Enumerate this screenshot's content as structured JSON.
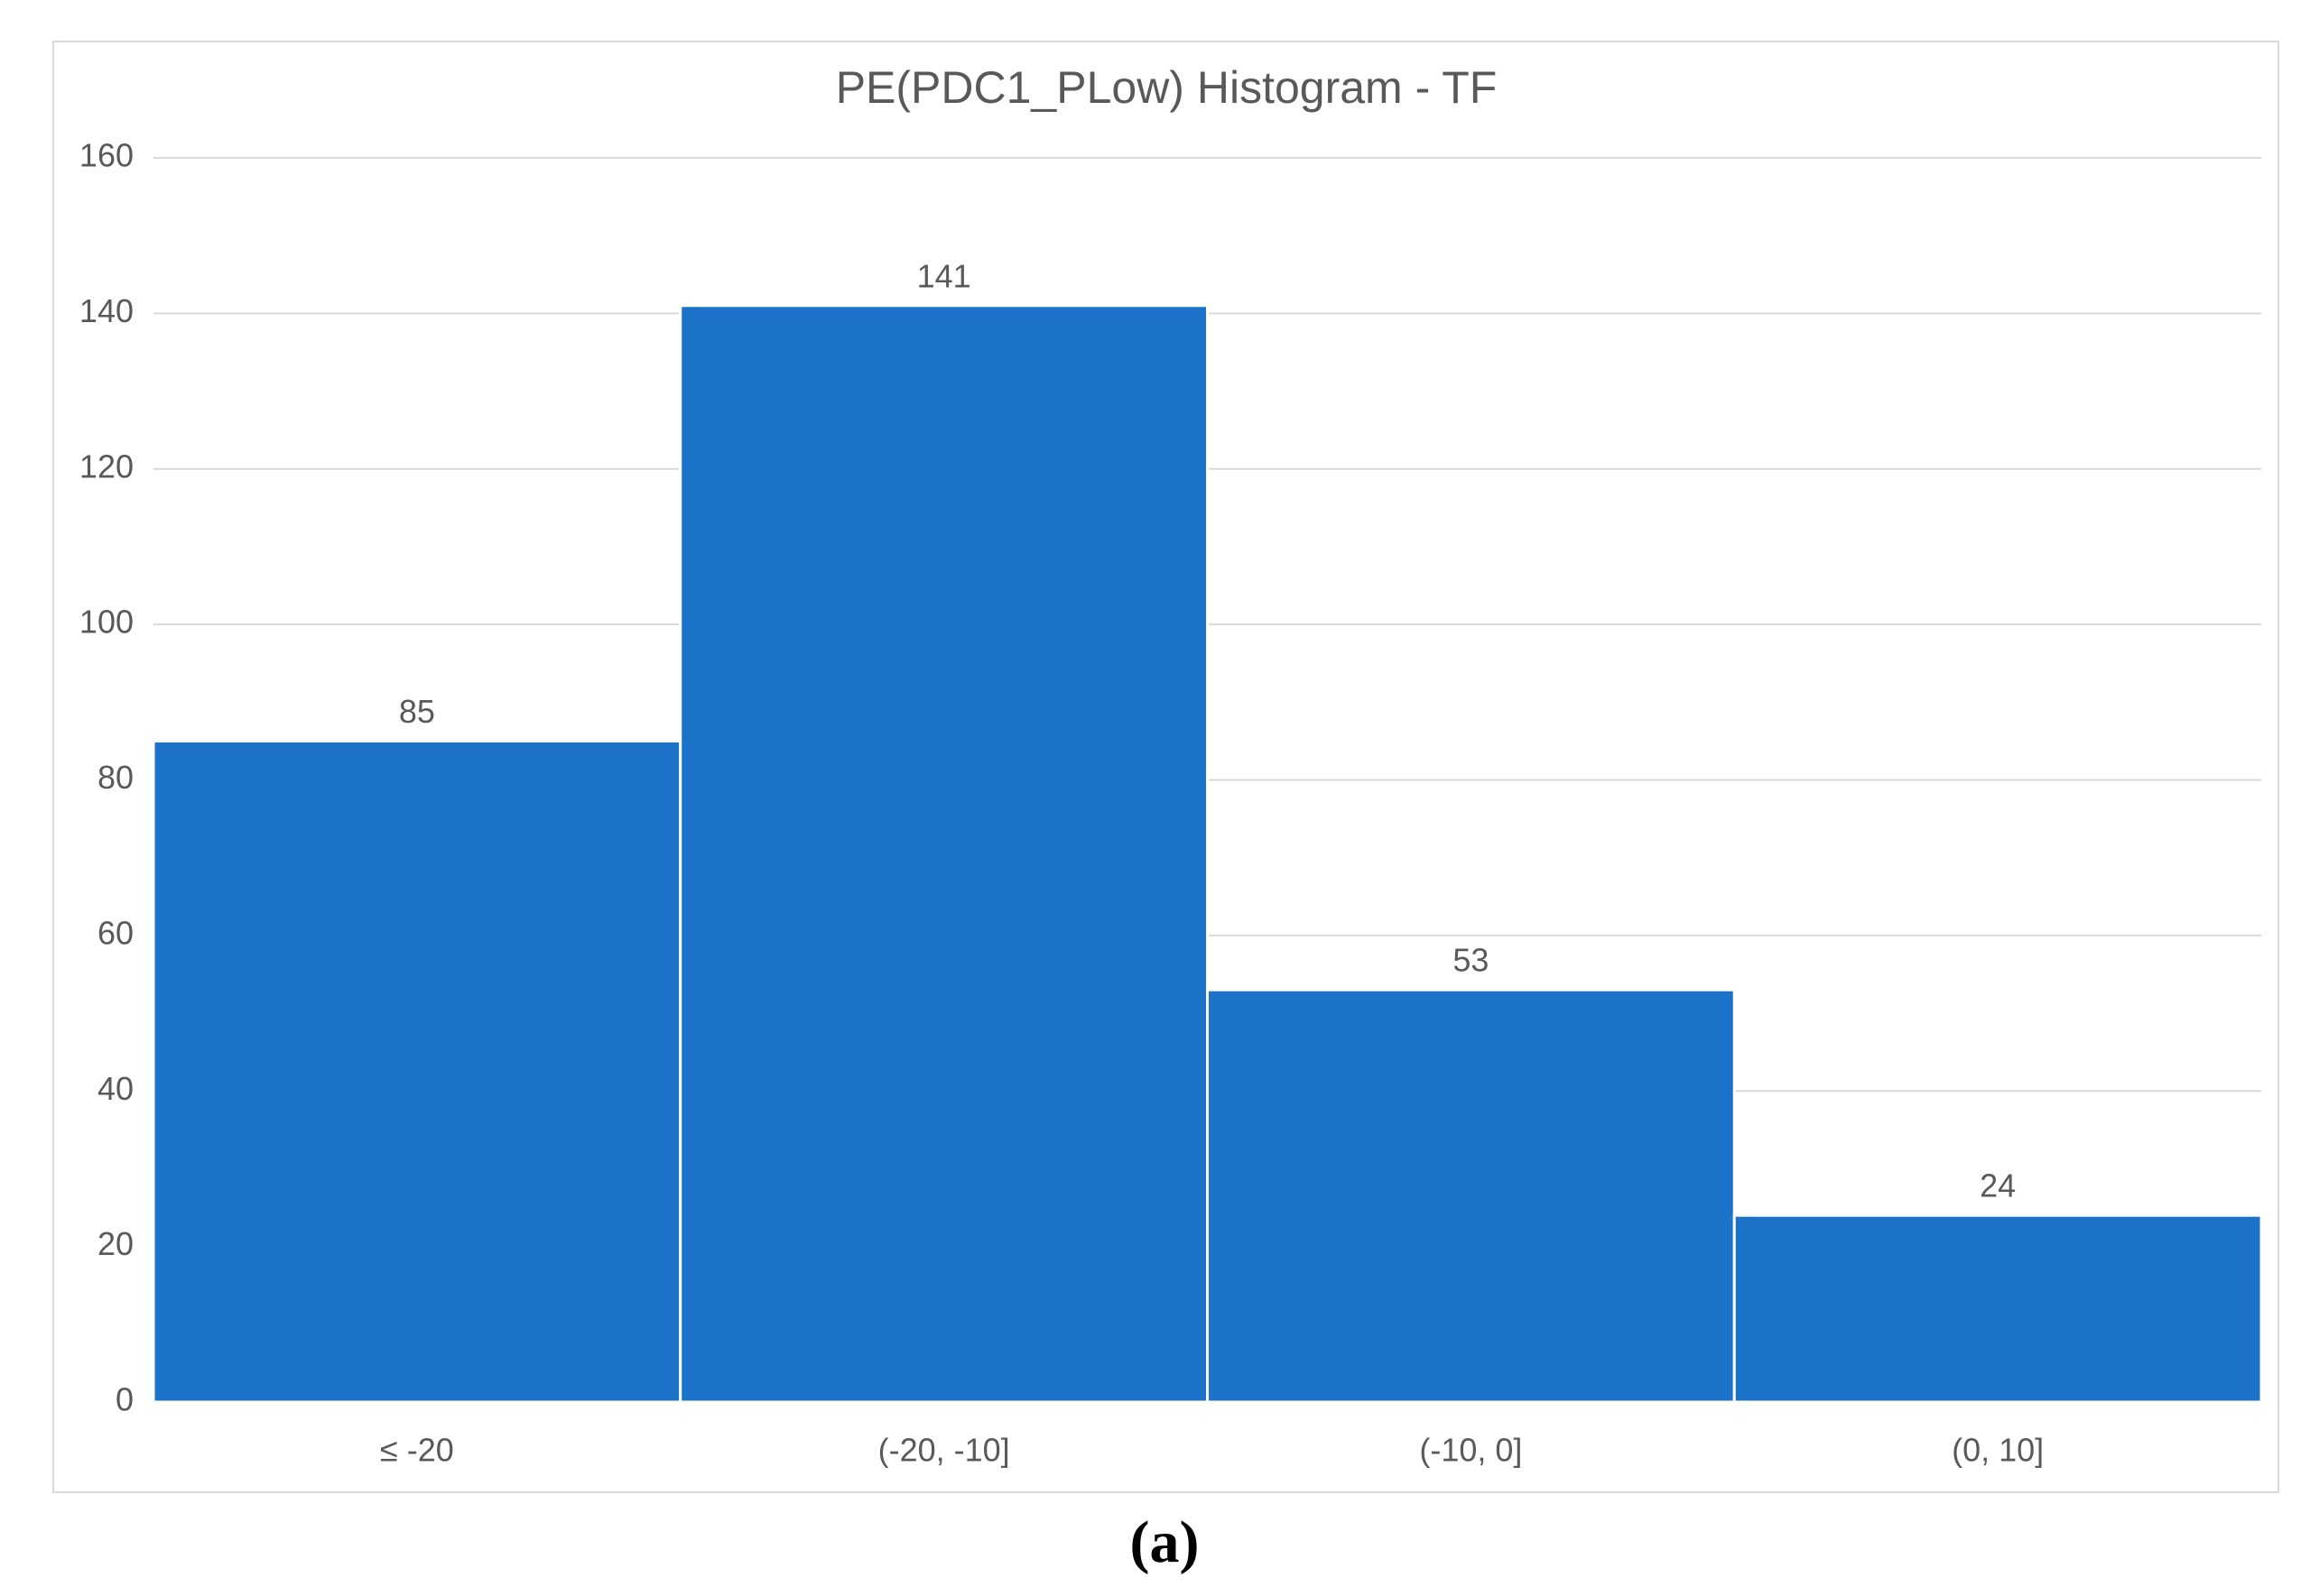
{
  "chart_data": {
    "type": "bar",
    "title": "PE(PDC1_PLow) Histogram - TF",
    "categories": [
      "≤ -20",
      "(-20, -10]",
      "(-10, 0]",
      "(0, 10]"
    ],
    "values": [
      85,
      141,
      53,
      24
    ],
    "color": "#1b72c8",
    "ylim": [
      0,
      160
    ],
    "yticks": [
      0,
      20,
      40,
      60,
      80,
      100,
      120,
      140,
      160
    ],
    "grid": true,
    "data_labels": true
  },
  "caption": "(a)"
}
